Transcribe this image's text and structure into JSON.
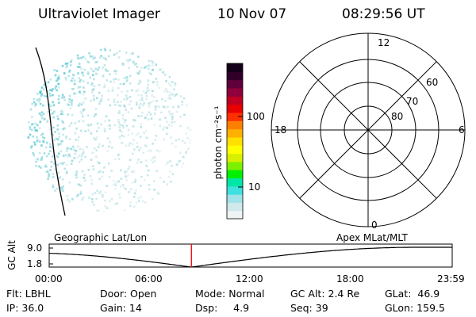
{
  "header": {
    "instrument": "Ultraviolet Imager",
    "date": "10 Nov 07",
    "time": "08:29:56 UT"
  },
  "colorbar": {
    "unit_label": "photon cm⁻²s⁻¹",
    "ticks": [
      "100",
      "10"
    ],
    "colors": [
      "#eef4f4",
      "#cfe9ec",
      "#9fe3e8",
      "#3ee0e0",
      "#00e6a6",
      "#00f000",
      "#7cf000",
      "#d8f000",
      "#ffff00",
      "#ffe000",
      "#ffb000",
      "#ff8000",
      "#ff3000",
      "#e80000",
      "#c00020",
      "#90003a",
      "#60003a",
      "#300028",
      "#140018"
    ]
  },
  "polar_grid": {
    "mlt_labels": [
      "12",
      "18",
      "6",
      "0"
    ],
    "lat_labels": [
      "60",
      "70",
      "80"
    ]
  },
  "orbit_plot": {
    "left_title": "Geographic Lat/Lon",
    "right_title": "Apex  MLat/MLT",
    "y_axis_label": "GC Alt",
    "y_ticks": [
      "9.0",
      "1.8"
    ],
    "x_ticks": [
      "00:00",
      "06:00",
      "12:00",
      "18:00",
      "23:59"
    ],
    "current_time_fraction": 0.353,
    "marker_color": "#ff0000"
  },
  "info": {
    "row1": {
      "flt": "Flt: LBHL",
      "door": "Door: Open",
      "mode": "Mode: Normal",
      "gc_alt": "GC Alt: 2.4 Re",
      "glat": "GLat:  46.9"
    },
    "row2": {
      "ip": "IP: 36.0",
      "gain": "Gain: 14",
      "dsp": "Dsp:     4.9",
      "seq": "Seq: 39",
      "glon": "GLon: 159.5"
    }
  }
}
